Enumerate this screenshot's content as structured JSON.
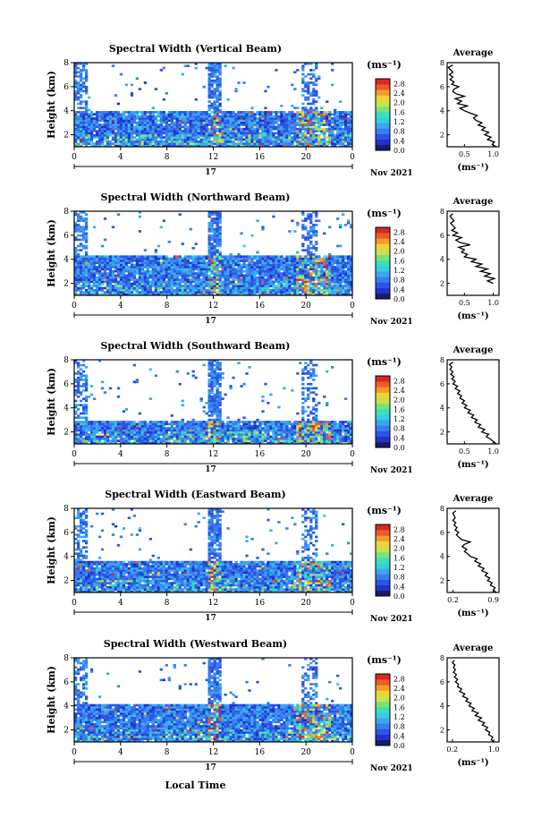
{
  "chart_data": [
    {
      "type": "heatmap",
      "title": "Spectral Width (Vertical Beam)",
      "ylabel": "Height (km)",
      "xticks": [
        "0",
        "4",
        "8",
        "12",
        "16",
        "20",
        "0"
      ],
      "date_mark": "17",
      "date_label": "Nov 2021",
      "xlim": [
        0,
        24
      ],
      "ylim": [
        1,
        8
      ],
      "yticks": [
        "2",
        "4",
        "6",
        "8"
      ],
      "colorbar": {
        "unit": "(ms⁻¹)",
        "ticks": [
          "0.0",
          "0.4",
          "0.8",
          "1.2",
          "1.6",
          "2.0",
          "2.4",
          "2.8"
        ],
        "range": [
          0,
          3
        ]
      },
      "profile": {
        "title": "Average",
        "xlabel": "(ms⁻¹)",
        "xticks": [
          "0.5",
          "1.0"
        ],
        "xlim": [
          0.2,
          1.1
        ],
        "heights": [
          1.0,
          1.2,
          1.4,
          1.6,
          1.8,
          2.0,
          2.2,
          2.4,
          2.6,
          2.8,
          3.0,
          3.2,
          3.4,
          3.6,
          3.8,
          4.0,
          4.2,
          4.4,
          4.6,
          4.8,
          5.0,
          5.2,
          5.4,
          5.6,
          5.8,
          6.0,
          6.2,
          6.4,
          6.6,
          6.8,
          7.0,
          7.2,
          7.4,
          7.6,
          7.8
        ],
        "values": [
          1.05,
          0.98,
          1.02,
          0.9,
          0.96,
          0.85,
          0.92,
          0.8,
          0.86,
          0.74,
          0.8,
          0.7,
          0.66,
          0.72,
          0.6,
          0.5,
          0.42,
          0.55,
          0.38,
          0.45,
          0.34,
          0.5,
          0.36,
          0.3,
          0.32,
          0.4,
          0.28,
          0.32,
          0.25,
          0.3,
          0.24,
          0.3,
          0.26,
          0.22,
          0.3
        ]
      },
      "echo_top": 4.0
    },
    {
      "type": "heatmap",
      "title": "Spectral Width (Northward Beam)",
      "ylabel": "Height (km)",
      "xticks": [
        "0",
        "4",
        "8",
        "12",
        "16",
        "20",
        "0"
      ],
      "date_mark": "17",
      "date_label": "Nov 2021",
      "xlim": [
        0,
        24
      ],
      "ylim": [
        1,
        8
      ],
      "yticks": [
        "2",
        "4",
        "6",
        "8"
      ],
      "colorbar": {
        "unit": "(ms⁻¹)",
        "ticks": [
          "0.0",
          "0.4",
          "0.8",
          "1.2",
          "1.6",
          "2.0",
          "2.4",
          "2.8"
        ],
        "range": [
          0,
          3
        ]
      },
      "profile": {
        "title": "Average",
        "xlabel": "(ms⁻¹)",
        "xticks": [
          "0.5",
          "1.0"
        ],
        "xlim": [
          0.2,
          1.1
        ],
        "heights": [
          2.0,
          2.2,
          2.4,
          2.6,
          2.8,
          3.0,
          3.2,
          3.4,
          3.6,
          3.8,
          4.0,
          4.2,
          4.4,
          4.6,
          4.8,
          5.0,
          5.2,
          5.4,
          5.6,
          5.8,
          6.0,
          6.2,
          6.4,
          6.6,
          6.8,
          7.0,
          7.2,
          7.4,
          7.6,
          7.8
        ],
        "values": [
          1.0,
          0.9,
          1.02,
          0.85,
          0.95,
          0.78,
          0.9,
          0.7,
          0.8,
          0.62,
          0.7,
          0.5,
          0.55,
          0.45,
          0.5,
          0.4,
          0.6,
          0.42,
          0.35,
          0.45,
          0.3,
          0.38,
          0.28,
          0.34,
          0.3,
          0.26,
          0.32,
          0.28,
          0.25,
          0.3
        ]
      },
      "echo_top": 4.3
    },
    {
      "type": "heatmap",
      "title": "Spectral Width (Southward Beam)",
      "ylabel": "Height (km)",
      "xticks": [
        "0",
        "4",
        "8",
        "12",
        "16",
        "20",
        "0"
      ],
      "date_mark": "17",
      "date_label": "Nov 2021",
      "xlim": [
        0,
        24
      ],
      "ylim": [
        1,
        8
      ],
      "yticks": [
        "2",
        "4",
        "6",
        "8"
      ],
      "colorbar": {
        "unit": "(ms⁻¹)",
        "ticks": [
          "0.0",
          "0.4",
          "0.8",
          "1.2",
          "1.6",
          "2.0",
          "2.4",
          "2.8"
        ],
        "range": [
          0,
          3
        ]
      },
      "profile": {
        "title": "Average",
        "xlabel": "(ms⁻¹)",
        "xticks": [
          "0.5",
          "1.0"
        ],
        "xlim": [
          0.2,
          1.1
        ],
        "heights": [
          1.0,
          1.2,
          1.4,
          1.6,
          1.8,
          2.0,
          2.2,
          2.4,
          2.6,
          2.8,
          3.0,
          3.2,
          3.4,
          3.6,
          3.8,
          4.0,
          4.2,
          4.4,
          4.6,
          4.8,
          5.0,
          5.2,
          5.4,
          5.6,
          5.8,
          6.0,
          6.2,
          6.4,
          6.6,
          6.8,
          7.0,
          7.2,
          7.4,
          7.6,
          7.8
        ],
        "values": [
          1.05,
          1.0,
          0.95,
          0.88,
          0.92,
          0.8,
          0.85,
          0.74,
          0.78,
          0.68,
          0.72,
          0.62,
          0.66,
          0.56,
          0.6,
          0.5,
          0.54,
          0.46,
          0.5,
          0.42,
          0.45,
          0.38,
          0.42,
          0.34,
          0.38,
          0.3,
          0.34,
          0.28,
          0.32,
          0.26,
          0.3,
          0.25,
          0.28,
          0.24,
          0.3
        ]
      },
      "echo_top": 3.0
    },
    {
      "type": "heatmap",
      "title": "Spectral Width (Eastward Beam)",
      "ylabel": "Height (km)",
      "xticks": [
        "0",
        "4",
        "8",
        "12",
        "16",
        "20",
        "0"
      ],
      "date_mark": "17",
      "date_label": "Nov 2021",
      "xlim": [
        0,
        24
      ],
      "ylim": [
        1,
        8
      ],
      "yticks": [
        "2",
        "4",
        "6",
        "8"
      ],
      "colorbar": {
        "unit": "(ms⁻¹)",
        "ticks": [
          "0.0",
          "0.4",
          "0.8",
          "1.2",
          "1.6",
          "2.0",
          "2.4",
          "2.8"
        ],
        "range": [
          0,
          3
        ]
      },
      "profile": {
        "title": "Average",
        "xlabel": "(ms⁻¹)",
        "xticks": [
          "0.2",
          "0.9"
        ],
        "xlim": [
          0.1,
          1.0
        ],
        "heights": [
          1.0,
          1.2,
          1.4,
          1.6,
          1.8,
          2.0,
          2.2,
          2.4,
          2.6,
          2.8,
          3.0,
          3.2,
          3.4,
          3.6,
          3.8,
          4.0,
          4.2,
          4.4,
          4.6,
          4.8,
          5.0,
          5.2,
          5.4,
          5.6,
          5.8,
          6.0,
          6.2,
          6.4,
          6.6,
          6.8,
          7.0,
          7.2,
          7.4,
          7.6,
          7.8
        ],
        "values": [
          0.95,
          0.9,
          0.93,
          0.85,
          0.88,
          0.8,
          0.84,
          0.76,
          0.8,
          0.7,
          0.74,
          0.64,
          0.68,
          0.58,
          0.62,
          0.5,
          0.46,
          0.4,
          0.44,
          0.36,
          0.4,
          0.5,
          0.35,
          0.3,
          0.26,
          0.3,
          0.24,
          0.27,
          0.22,
          0.25,
          0.2,
          0.24,
          0.22,
          0.2,
          0.25
        ]
      },
      "echo_top": 3.7
    },
    {
      "type": "heatmap",
      "title": "Spectral Width (Westward Beam)",
      "ylabel": "Height (km)",
      "xlabel": "Local Time",
      "xticks": [
        "0",
        "4",
        "8",
        "12",
        "16",
        "20",
        "0"
      ],
      "date_mark": "17",
      "date_label": "Nov 2021",
      "xlim": [
        0,
        24
      ],
      "ylim": [
        1,
        8
      ],
      "yticks": [
        "2",
        "4",
        "6",
        "8"
      ],
      "colorbar": {
        "unit": "(ms⁻¹)",
        "ticks": [
          "0.0",
          "0.4",
          "0.8",
          "1.2",
          "1.6",
          "2.0",
          "2.4",
          "2.8"
        ],
        "range": [
          0,
          3
        ]
      },
      "profile": {
        "title": "Average",
        "xlabel": "(ms⁻¹)",
        "xticks": [
          "0.2",
          "1.0"
        ],
        "xlim": [
          0.1,
          1.1
        ],
        "heights": [
          1.0,
          1.2,
          1.4,
          1.6,
          1.8,
          2.0,
          2.2,
          2.4,
          2.6,
          2.8,
          3.0,
          3.2,
          3.4,
          3.6,
          3.8,
          4.0,
          4.2,
          4.4,
          4.6,
          4.8,
          5.0,
          5.2,
          5.4,
          5.6,
          5.8,
          6.0,
          6.2,
          6.4,
          6.6,
          6.8,
          7.0,
          7.2,
          7.4,
          7.6,
          7.8
        ],
        "values": [
          1.0,
          0.95,
          0.98,
          0.9,
          0.92,
          0.84,
          0.88,
          0.78,
          0.82,
          0.7,
          0.76,
          0.64,
          0.7,
          0.58,
          0.62,
          0.52,
          0.56,
          0.46,
          0.5,
          0.4,
          0.44,
          0.34,
          0.38,
          0.3,
          0.32,
          0.26,
          0.3,
          0.24,
          0.28,
          0.22,
          0.26,
          0.22,
          0.25,
          0.2,
          0.24
        ]
      },
      "echo_top": 4.1
    }
  ]
}
